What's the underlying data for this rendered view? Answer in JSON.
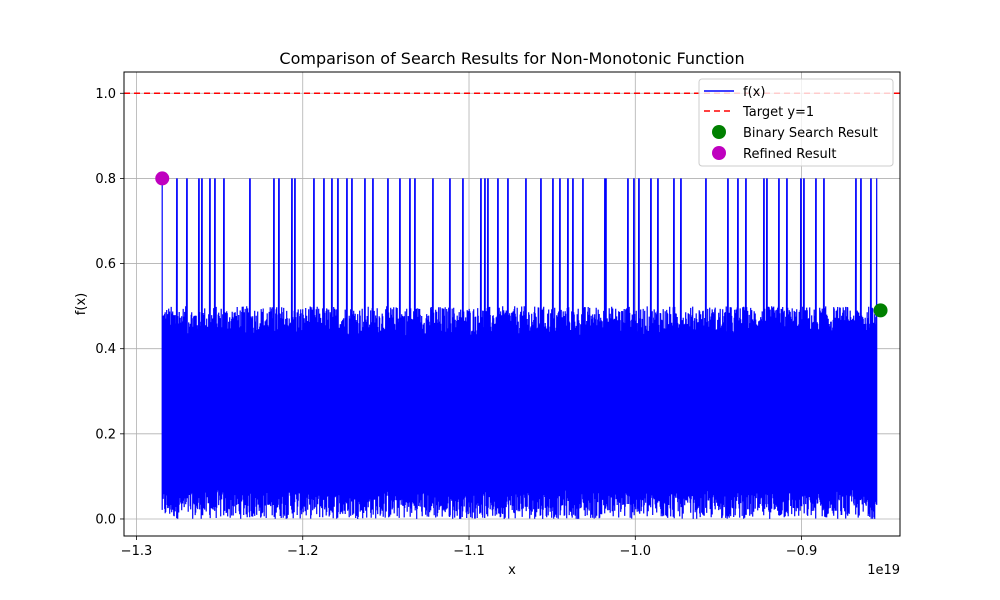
{
  "chart_data": {
    "type": "line",
    "title": "Comparison of Search Results for Non-Monotonic Function",
    "xlabel": "x",
    "ylabel": "f(x)",
    "x_offset_label": "1e19",
    "xlim": [
      -1.3075,
      -0.8408
    ],
    "ylim": [
      -0.04,
      1.05
    ],
    "x_ticks": [
      -1.3,
      -1.2,
      -1.1,
      -1.0,
      -0.9
    ],
    "x_tick_labels": [
      "−1.3",
      "−1.2",
      "−1.1",
      "−1.0",
      "−0.9"
    ],
    "y_ticks": [
      0.0,
      0.2,
      0.4,
      0.6,
      0.8,
      1.0
    ],
    "y_tick_labels": [
      "0.0",
      "0.2",
      "0.4",
      "0.6",
      "0.8",
      "1.0"
    ],
    "grid": true,
    "legend_position": "top-right",
    "series": [
      {
        "name": "f(x)",
        "kind": "line",
        "color": "#0000ff",
        "x_range": [
          -1.2845,
          -0.8545
        ],
        "y_min": 0.0,
        "y_max": 0.5,
        "spike_value": 0.8,
        "spike_x": [
          -1.2845,
          -1.2755,
          -1.2695,
          -1.2625,
          -1.2605,
          -1.2555,
          -1.2525,
          -1.2475,
          -1.2315,
          -1.2175,
          -1.2145,
          -1.2065,
          -1.2045,
          -1.1935,
          -1.1875,
          -1.1825,
          -1.1785,
          -1.1735,
          -1.1705,
          -1.1625,
          -1.1575,
          -1.1485,
          -1.1415,
          -1.1355,
          -1.1325,
          -1.1215,
          -1.1115,
          -1.1035,
          -1.0925,
          -1.0905,
          -1.0885,
          -1.0825,
          -1.0765,
          -1.0655,
          -1.0565,
          -1.0495,
          -1.0455,
          -1.0405,
          -1.0375,
          -1.0315,
          -1.0185,
          -1.0175,
          -1.0045,
          -1.0005,
          -0.9975,
          -0.9905,
          -0.9865,
          -0.9765,
          -0.9725,
          -0.9575,
          -0.9445,
          -0.9385,
          -0.9335,
          -0.9225,
          -0.9205,
          -0.9135,
          -0.9085,
          -0.9005,
          -0.8985,
          -0.8915,
          -0.8865,
          -0.8675,
          -0.8645,
          -0.8585,
          -0.8545
        ]
      },
      {
        "name": "Target y=1",
        "kind": "hline",
        "color": "#ff0000",
        "y": 1.0,
        "dashed": true
      },
      {
        "name": "Binary Search Result",
        "kind": "point",
        "color": "#008000",
        "x": -0.8525,
        "y": 0.49
      },
      {
        "name": "Refined Result",
        "kind": "point",
        "color": "#bf00bf",
        "x": -1.2845,
        "y": 0.8
      }
    ]
  }
}
